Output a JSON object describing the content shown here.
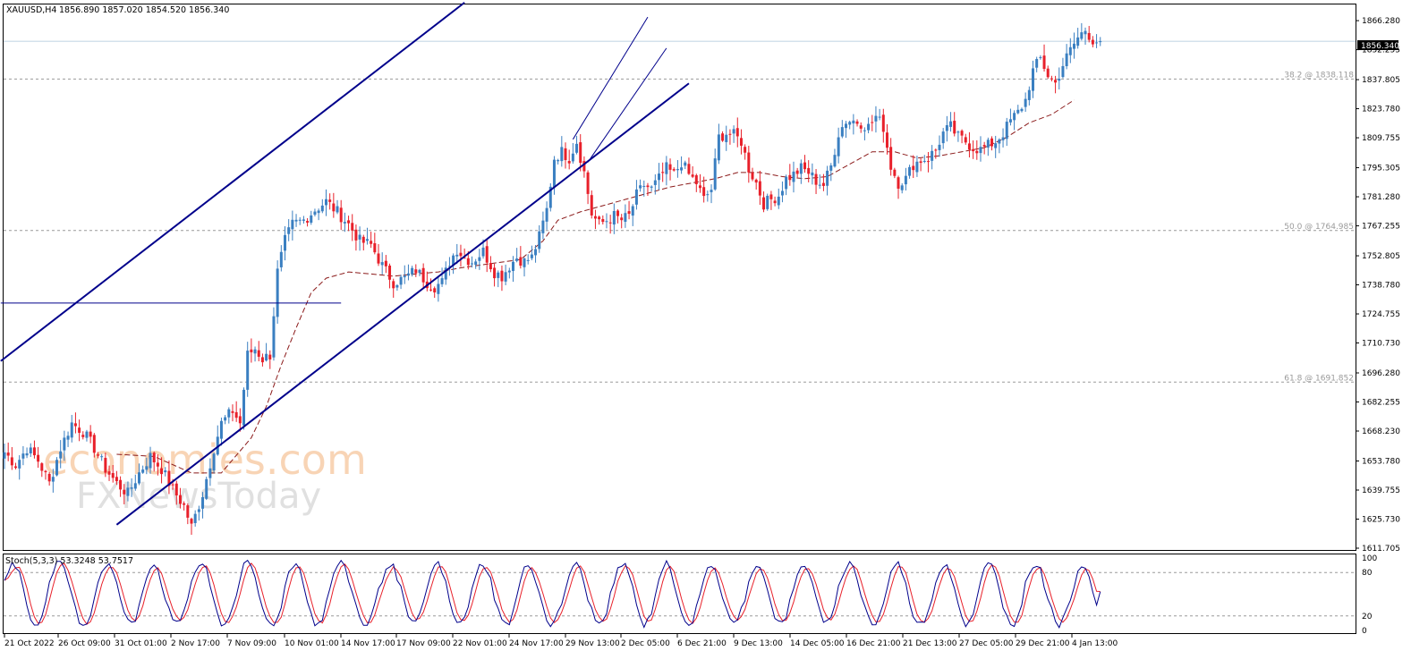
{
  "header": {
    "symbol": "XAUUSD,H4",
    "ohlc": "1856.890 1857.020 1854.520 1856.340"
  },
  "watermark": {
    "line1": "economies.com",
    "line2": "FXNewsToday"
  },
  "price_tag": "1856.340",
  "colors": {
    "bull": "#3a7fc1",
    "bear": "#e8202a",
    "ma": "#8b1a1a",
    "trend": "#00008b",
    "stoch_main": "#00008b",
    "stoch_signal": "#e8202a"
  },
  "chart_data": {
    "type": "candlestick",
    "symbol": "XAUUSD",
    "timeframe": "H4",
    "last_bar": {
      "open": 1856.89,
      "high": 1857.02,
      "low": 1854.52,
      "close": 1856.34
    },
    "ylim": [
      1611.705,
      1875.0
    ],
    "y_ticks": [
      "1866.280",
      "1852.255",
      "1837.805",
      "1823.780",
      "1809.755",
      "1795.305",
      "1781.280",
      "1767.255",
      "1752.805",
      "1738.780",
      "1724.755",
      "1710.730",
      "1696.280",
      "1682.255",
      "1668.230",
      "1653.780",
      "1639.755",
      "1625.730",
      "1611.705"
    ],
    "x_ticks": [
      "21 Oct 2022",
      "26 Oct 09:00",
      "31 Oct 01:00",
      "2 Nov 17:00",
      "7 Nov 09:00",
      "10 Nov 01:00",
      "14 Nov 17:00",
      "17 Nov 09:00",
      "22 Nov 01:00",
      "24 Nov 17:00",
      "29 Nov 13:00",
      "2 Dec 05:00",
      "6 Dec 21:00",
      "9 Dec 13:00",
      "14 Dec 05:00",
      "16 Dec 21:00",
      "21 Dec 13:00",
      "27 Dec 05:00",
      "29 Dec 21:00",
      "4 Jan 13:00"
    ],
    "close_path": [
      [
        0,
        1658
      ],
      [
        3,
        1652
      ],
      [
        6,
        1660
      ],
      [
        9,
        1654
      ],
      [
        12,
        1643
      ],
      [
        15,
        1660
      ],
      [
        18,
        1672
      ],
      [
        21,
        1668
      ],
      [
        24,
        1660
      ],
      [
        27,
        1650
      ],
      [
        30,
        1643
      ],
      [
        33,
        1638
      ],
      [
        36,
        1648
      ],
      [
        39,
        1656
      ],
      [
        42,
        1650
      ],
      [
        45,
        1640
      ],
      [
        48,
        1632
      ],
      [
        50,
        1622
      ],
      [
        53,
        1638
      ],
      [
        56,
        1660
      ],
      [
        58,
        1672
      ],
      [
        61,
        1678
      ],
      [
        63,
        1672
      ],
      [
        65,
        1705
      ],
      [
        67,
        1708
      ],
      [
        69,
        1703
      ],
      [
        71,
        1705
      ],
      [
        73,
        1745
      ],
      [
        75,
        1760
      ],
      [
        77,
        1768
      ],
      [
        80,
        1770
      ],
      [
        83,
        1775
      ],
      [
        86,
        1779
      ],
      [
        89,
        1774
      ],
      [
        92,
        1768
      ],
      [
        95,
        1760
      ],
      [
        98,
        1758
      ],
      [
        101,
        1748
      ],
      [
        104,
        1740
      ],
      [
        107,
        1742
      ],
      [
        110,
        1746
      ],
      [
        113,
        1740
      ],
      [
        115,
        1738
      ],
      [
        117,
        1740
      ],
      [
        119,
        1750
      ],
      [
        121,
        1756
      ],
      [
        123,
        1752
      ],
      [
        125,
        1750
      ],
      [
        128,
        1755
      ],
      [
        131,
        1745
      ],
      [
        133,
        1743
      ],
      [
        135,
        1748
      ],
      [
        137,
        1752
      ],
      [
        139,
        1750
      ],
      [
        141,
        1752
      ],
      [
        143,
        1762
      ],
      [
        145,
        1775
      ],
      [
        147,
        1800
      ],
      [
        149,
        1803
      ],
      [
        151,
        1800
      ],
      [
        153,
        1808
      ],
      [
        155,
        1793
      ],
      [
        157,
        1773
      ],
      [
        159,
        1768
      ],
      [
        161,
        1770
      ],
      [
        163,
        1772
      ],
      [
        165,
        1770
      ],
      [
        167,
        1772
      ],
      [
        169,
        1782
      ],
      [
        171,
        1787
      ],
      [
        173,
        1785
      ],
      [
        175,
        1790
      ],
      [
        177,
        1795
      ],
      [
        179,
        1792
      ],
      [
        181,
        1798
      ],
      [
        183,
        1792
      ],
      [
        185,
        1788
      ],
      [
        187,
        1780
      ],
      [
        189,
        1785
      ],
      [
        191,
        1810
      ],
      [
        193,
        1812
      ],
      [
        195,
        1811
      ],
      [
        197,
        1808
      ],
      [
        199,
        1795
      ],
      [
        201,
        1788
      ],
      [
        203,
        1778
      ],
      [
        205,
        1780
      ],
      [
        207,
        1782
      ],
      [
        209,
        1790
      ],
      [
        211,
        1792
      ],
      [
        213,
        1795
      ],
      [
        215,
        1793
      ],
      [
        217,
        1789
      ],
      [
        219,
        1787
      ],
      [
        221,
        1796
      ],
      [
        223,
        1812
      ],
      [
        225,
        1818
      ],
      [
        227,
        1818
      ],
      [
        229,
        1817
      ],
      [
        231,
        1815
      ],
      [
        233,
        1820
      ],
      [
        235,
        1815
      ],
      [
        237,
        1796
      ],
      [
        239,
        1788
      ],
      [
        241,
        1790
      ],
      [
        243,
        1797
      ],
      [
        245,
        1799
      ],
      [
        247,
        1800
      ],
      [
        249,
        1804
      ],
      [
        251,
        1812
      ],
      [
        253,
        1815
      ],
      [
        255,
        1810
      ],
      [
        257,
        1808
      ],
      [
        259,
        1805
      ],
      [
        261,
        1804
      ],
      [
        263,
        1806
      ],
      [
        265,
        1808
      ],
      [
        267,
        1812
      ],
      [
        269,
        1818
      ],
      [
        271,
        1822
      ],
      [
        273,
        1828
      ],
      [
        275,
        1842
      ],
      [
        277,
        1848
      ],
      [
        279,
        1840
      ],
      [
        281,
        1836
      ],
      [
        283,
        1845
      ],
      [
        285,
        1852
      ],
      [
        287,
        1858
      ],
      [
        289,
        1862
      ],
      [
        291,
        1857
      ],
      [
        293,
        1856
      ]
    ],
    "ma_path": [
      [
        30,
        1657
      ],
      [
        40,
        1656
      ],
      [
        50,
        1648
      ],
      [
        58,
        1648
      ],
      [
        66,
        1665
      ],
      [
        70,
        1680
      ],
      [
        74,
        1700
      ],
      [
        78,
        1718
      ],
      [
        82,
        1735
      ],
      [
        86,
        1742
      ],
      [
        92,
        1745
      ],
      [
        98,
        1744
      ],
      [
        104,
        1743
      ],
      [
        110,
        1744
      ],
      [
        116,
        1745
      ],
      [
        122,
        1747
      ],
      [
        130,
        1749
      ],
      [
        138,
        1751
      ],
      [
        144,
        1760
      ],
      [
        148,
        1770
      ],
      [
        154,
        1774
      ],
      [
        160,
        1777
      ],
      [
        166,
        1780
      ],
      [
        172,
        1783
      ],
      [
        178,
        1786
      ],
      [
        184,
        1788
      ],
      [
        190,
        1790
      ],
      [
        196,
        1793
      ],
      [
        202,
        1793
      ],
      [
        208,
        1791
      ],
      [
        214,
        1790
      ],
      [
        220,
        1791
      ],
      [
        226,
        1797
      ],
      [
        232,
        1803
      ],
      [
        238,
        1803
      ],
      [
        244,
        1800
      ],
      [
        250,
        1801
      ],
      [
        256,
        1803
      ],
      [
        262,
        1805
      ],
      [
        268,
        1810
      ],
      [
        274,
        1817
      ],
      [
        280,
        1821
      ],
      [
        286,
        1828
      ]
    ],
    "trendlines": [
      {
        "name": "outer-upper",
        "points": [
          [
            -1,
            1702
          ],
          [
            123,
            1875
          ]
        ]
      },
      {
        "name": "outer-lower",
        "points": [
          [
            30,
            1623
          ],
          [
            183,
            1836
          ]
        ]
      },
      {
        "name": "inner-upper",
        "points": [
          [
            152,
            1809
          ],
          [
            172,
            1868
          ]
        ]
      },
      {
        "name": "inner-lower",
        "points": [
          [
            156,
            1798
          ],
          [
            177,
            1853
          ]
        ]
      },
      {
        "name": "horizontal",
        "points": [
          [
            -1,
            1730
          ],
          [
            90,
            1730
          ]
        ]
      }
    ],
    "fib_levels": [
      {
        "label": "38.2 @ 1838.118",
        "value": 1838.118
      },
      {
        "label": "50.0 @ 1764.985",
        "value": 1764.985
      },
      {
        "label": "61.8 @ 1691.852",
        "value": 1691.852
      }
    ],
    "stochastic": {
      "label": "Stoch(5,3,3) 53.3248 53.7517",
      "k": 53.3248,
      "d": 53.7517,
      "levels": [
        80,
        20
      ],
      "y_ticks": [
        "100",
        "80",
        "20",
        "0"
      ]
    }
  }
}
